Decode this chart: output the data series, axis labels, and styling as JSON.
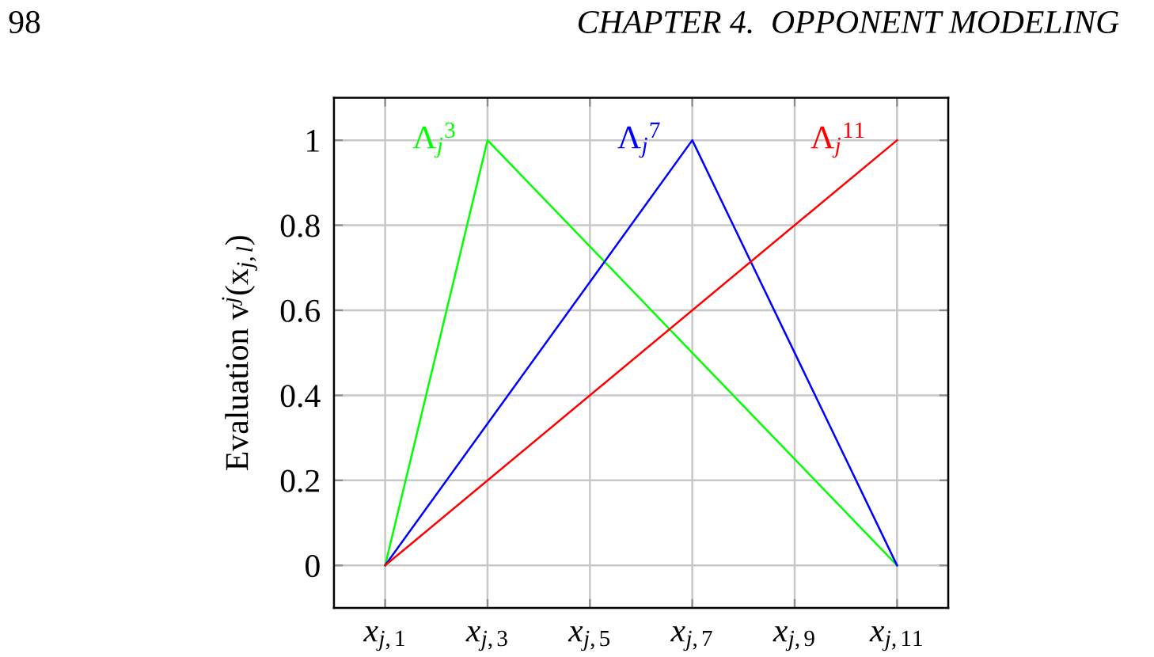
{
  "chart_data": {
    "type": "line",
    "ylabel": "Evaluation v$^{j}$(x$_{j,l}$)",
    "annotations": [
      "98",
      "CHAPTER 4.  OPPONENT MODELING"
    ],
    "xlim": [
      0,
      12
    ],
    "ylim": [
      -0.1,
      1.1
    ],
    "xticks": [
      {
        "value": 1,
        "label": "x$_{j,1}$"
      },
      {
        "value": 3,
        "label": "x$_{j,3}$"
      },
      {
        "value": 5,
        "label": "x$_{j,5}$"
      },
      {
        "value": 7,
        "label": "x$_{j,7}$"
      },
      {
        "value": 9,
        "label": "x$_{j,9}$"
      },
      {
        "value": 11,
        "label": "x$_{j,11}$"
      }
    ],
    "yticks": [
      0,
      0.2,
      0.4,
      0.6,
      0.8,
      1
    ],
    "grid": true,
    "series": [
      {
        "name": "Λ$_{j}$$^{3}$",
        "color": "#00ff00",
        "x": [
          1,
          3,
          11
        ],
        "values": [
          0,
          1,
          0
        ]
      },
      {
        "name": "Λ$_{j}$$^{7}$",
        "color": "#0000ff",
        "x": [
          1,
          7,
          11
        ],
        "values": [
          0,
          1,
          0
        ]
      },
      {
        "name": "Λ$_{j}$$^{11}$",
        "color": "#ff0000",
        "x": [
          1,
          11
        ],
        "values": [
          0,
          1
        ]
      }
    ]
  }
}
